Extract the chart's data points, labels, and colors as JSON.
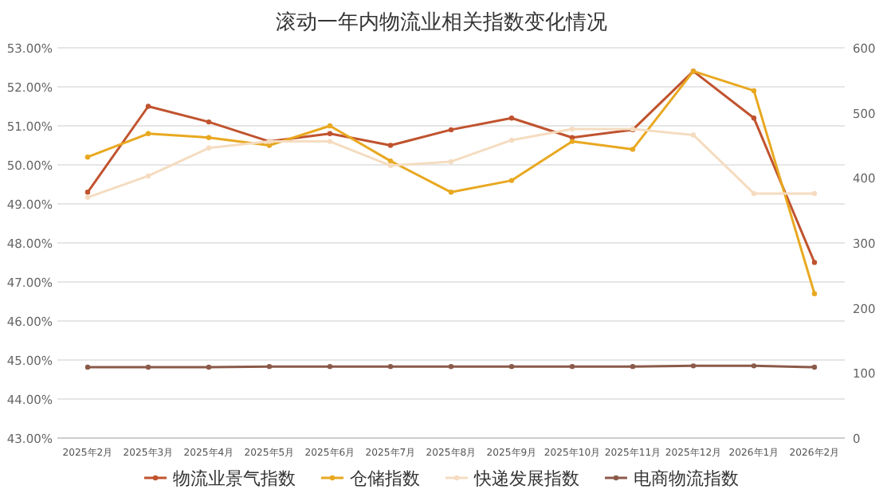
{
  "chart_data": {
    "type": "line",
    "title": "滚动一年内物流业相关指数变化情况",
    "categories": [
      "2025年2月",
      "2025年3月",
      "2025年4月",
      "2025年5月",
      "2025年6月",
      "2025年7月",
      "2025年8月",
      "2025年9月",
      "2025年10月",
      "2025年11月",
      "2025年12月",
      "2026年1月",
      "2026年2月"
    ],
    "series": [
      {
        "name": "物流业景气指数",
        "color": "#c0532e",
        "values": [
          49.3,
          51.5,
          51.1,
          50.6,
          50.8,
          50.5,
          50.9,
          51.2,
          50.7,
          50.9,
          52.4,
          51.2,
          47.5
        ]
      },
      {
        "name": "仓储指数",
        "color": "#e8a820",
        "values": [
          50.2,
          50.8,
          50.7,
          50.5,
          51.0,
          50.1,
          49.3,
          49.6,
          50.6,
          50.4,
          52.4,
          51.9,
          46.7
        ]
      },
      {
        "name": "快递发展指数",
        "color": "#f5dcc0",
        "axis": "y2",
        "values": [
          370,
          403,
          446,
          456,
          456,
          419,
          425,
          458,
          475,
          475,
          466,
          376,
          376
        ]
      },
      {
        "name": "电商物流指数",
        "color": "#8b5a4a",
        "axis": "y2",
        "values": [
          109,
          109,
          109,
          110,
          110,
          110,
          110,
          110,
          110,
          110,
          111,
          111,
          109
        ]
      }
    ],
    "ylim": [
      43,
      53
    ],
    "yticks": [
      {
        "value": 43,
        "label": "43.00%"
      },
      {
        "value": 44,
        "label": "44.00%"
      },
      {
        "value": 45,
        "label": "45.00%"
      },
      {
        "value": 46,
        "label": "46.00%"
      },
      {
        "value": 47,
        "label": "47.00%"
      },
      {
        "value": 48,
        "label": "48.00%"
      },
      {
        "value": 49,
        "label": "49.00%"
      },
      {
        "value": 50,
        "label": "50.00%"
      },
      {
        "value": 51,
        "label": "51.00%"
      },
      {
        "value": 52,
        "label": "52.00%"
      },
      {
        "value": 53,
        "label": "53.00%"
      }
    ],
    "y2lim": [
      0,
      600
    ],
    "y2ticks": [
      0,
      100,
      200,
      300,
      400,
      500,
      600
    ],
    "grid": "y",
    "legend": "bottom",
    "marker": "circle",
    "line_style": "solid"
  }
}
